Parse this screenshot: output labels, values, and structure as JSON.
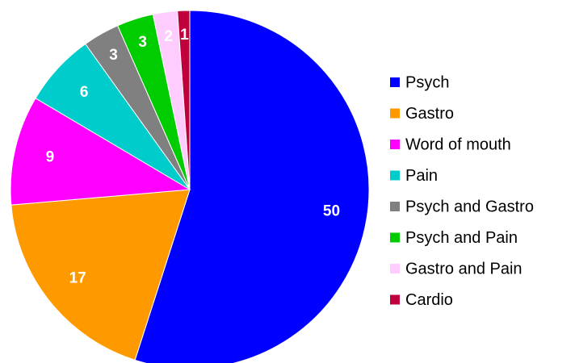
{
  "chart_data": {
    "type": "pie",
    "categories": [
      "Psych",
      "Gastro",
      "Word of mouth",
      "Pain",
      "Psych and Gastro",
      "Psych and Pain",
      "Gastro and Pain",
      "Cardio"
    ],
    "values": [
      50,
      17,
      9,
      6,
      3,
      3,
      2,
      1
    ],
    "colors": [
      "#0000ff",
      "#ff9900",
      "#ff00ff",
      "#00cccc",
      "#808080",
      "#00cc00",
      "#ffccff",
      "#c0003c"
    ],
    "legend": "right"
  }
}
